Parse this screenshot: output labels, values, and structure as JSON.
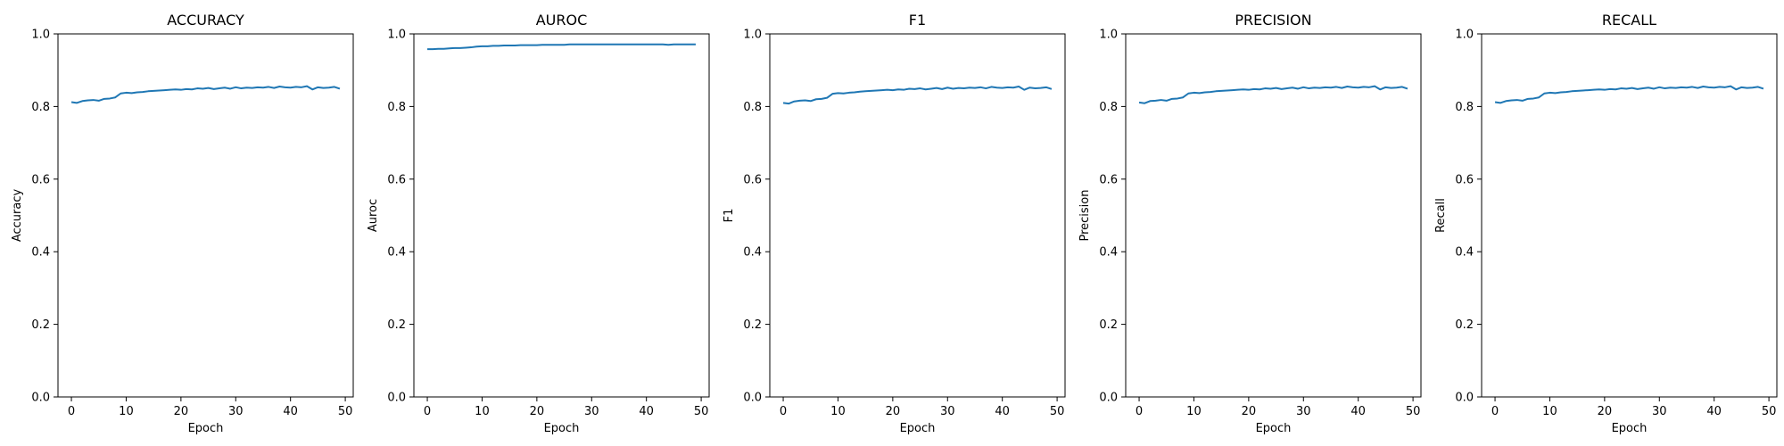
{
  "chart_data": [
    {
      "type": "line",
      "title": "ACCURACY",
      "xlabel": "Epoch",
      "ylabel": "Accuracy",
      "xlim": [
        -2.45,
        51.45
      ],
      "ylim": [
        0.0,
        1.0
      ],
      "xticks": [
        0,
        10,
        20,
        30,
        40,
        50
      ],
      "yticks": [
        0.0,
        0.2,
        0.4,
        0.6,
        0.8,
        1.0
      ],
      "grid": false,
      "color": "#1f77b4",
      "series": [
        {
          "x": [
            0,
            1,
            2,
            3,
            4,
            5,
            6,
            7,
            8,
            9,
            10,
            11,
            12,
            13,
            14,
            15,
            16,
            17,
            18,
            19,
            20,
            21,
            22,
            23,
            24,
            25,
            26,
            27,
            28,
            29,
            30,
            31,
            32,
            33,
            34,
            35,
            36,
            37,
            38,
            39,
            40,
            41,
            42,
            43,
            44,
            45,
            46,
            47,
            48,
            49
          ],
          "values": [
            0.812,
            0.81,
            0.815,
            0.817,
            0.818,
            0.816,
            0.821,
            0.822,
            0.825,
            0.836,
            0.838,
            0.837,
            0.839,
            0.84,
            0.842,
            0.843,
            0.844,
            0.845,
            0.846,
            0.847,
            0.846,
            0.848,
            0.847,
            0.85,
            0.849,
            0.851,
            0.848,
            0.85,
            0.852,
            0.849,
            0.853,
            0.85,
            0.852,
            0.851,
            0.853,
            0.852,
            0.854,
            0.851,
            0.855,
            0.853,
            0.852,
            0.854,
            0.853,
            0.856,
            0.847,
            0.853,
            0.851,
            0.852,
            0.854,
            0.849
          ]
        }
      ]
    },
    {
      "type": "line",
      "title": "AUROC",
      "xlabel": "Epoch",
      "ylabel": "Auroc",
      "xlim": [
        -2.45,
        51.45
      ],
      "ylim": [
        0.0,
        1.0
      ],
      "xticks": [
        0,
        10,
        20,
        30,
        40,
        50
      ],
      "yticks": [
        0.0,
        0.2,
        0.4,
        0.6,
        0.8,
        1.0
      ],
      "grid": false,
      "color": "#1f77b4",
      "series": [
        {
          "x": [
            0,
            1,
            2,
            3,
            4,
            5,
            6,
            7,
            8,
            9,
            10,
            11,
            12,
            13,
            14,
            15,
            16,
            17,
            18,
            19,
            20,
            21,
            22,
            23,
            24,
            25,
            26,
            27,
            28,
            29,
            30,
            31,
            32,
            33,
            34,
            35,
            36,
            37,
            38,
            39,
            40,
            41,
            42,
            43,
            44,
            45,
            46,
            47,
            48,
            49
          ],
          "values": [
            0.958,
            0.958,
            0.959,
            0.959,
            0.96,
            0.961,
            0.961,
            0.962,
            0.963,
            0.965,
            0.966,
            0.966,
            0.967,
            0.967,
            0.968,
            0.968,
            0.968,
            0.969,
            0.969,
            0.969,
            0.969,
            0.97,
            0.97,
            0.97,
            0.97,
            0.97,
            0.971,
            0.971,
            0.971,
            0.971,
            0.971,
            0.971,
            0.971,
            0.971,
            0.971,
            0.971,
            0.971,
            0.971,
            0.971,
            0.971,
            0.971,
            0.971,
            0.971,
            0.971,
            0.97,
            0.971,
            0.971,
            0.971,
            0.971,
            0.971
          ]
        }
      ]
    },
    {
      "type": "line",
      "title": "F1",
      "xlabel": "Epoch",
      "ylabel": "F1",
      "xlim": [
        -2.45,
        51.45
      ],
      "ylim": [
        0.0,
        1.0
      ],
      "xticks": [
        0,
        10,
        20,
        30,
        40,
        50
      ],
      "yticks": [
        0.0,
        0.2,
        0.4,
        0.6,
        0.8,
        1.0
      ],
      "grid": false,
      "color": "#1f77b4",
      "series": [
        {
          "x": [
            0,
            1,
            2,
            3,
            4,
            5,
            6,
            7,
            8,
            9,
            10,
            11,
            12,
            13,
            14,
            15,
            16,
            17,
            18,
            19,
            20,
            21,
            22,
            23,
            24,
            25,
            26,
            27,
            28,
            29,
            30,
            31,
            32,
            33,
            34,
            35,
            36,
            37,
            38,
            39,
            40,
            41,
            42,
            43,
            44,
            45,
            46,
            47,
            48,
            49
          ],
          "values": [
            0.81,
            0.808,
            0.814,
            0.816,
            0.817,
            0.815,
            0.82,
            0.821,
            0.824,
            0.835,
            0.837,
            0.836,
            0.838,
            0.839,
            0.841,
            0.842,
            0.843,
            0.844,
            0.845,
            0.846,
            0.845,
            0.847,
            0.846,
            0.849,
            0.848,
            0.85,
            0.847,
            0.849,
            0.851,
            0.848,
            0.852,
            0.849,
            0.851,
            0.85,
            0.852,
            0.851,
            0.853,
            0.85,
            0.854,
            0.852,
            0.851,
            0.853,
            0.852,
            0.855,
            0.846,
            0.852,
            0.85,
            0.851,
            0.853,
            0.848
          ]
        }
      ]
    },
    {
      "type": "line",
      "title": "PRECISION",
      "xlabel": "Epoch",
      "ylabel": "Precision",
      "xlim": [
        -2.45,
        51.45
      ],
      "ylim": [
        0.0,
        1.0
      ],
      "xticks": [
        0,
        10,
        20,
        30,
        40,
        50
      ],
      "yticks": [
        0.0,
        0.2,
        0.4,
        0.6,
        0.8,
        1.0
      ],
      "grid": false,
      "color": "#1f77b4",
      "series": [
        {
          "x": [
            0,
            1,
            2,
            3,
            4,
            5,
            6,
            7,
            8,
            9,
            10,
            11,
            12,
            13,
            14,
            15,
            16,
            17,
            18,
            19,
            20,
            21,
            22,
            23,
            24,
            25,
            26,
            27,
            28,
            29,
            30,
            31,
            32,
            33,
            34,
            35,
            36,
            37,
            38,
            39,
            40,
            41,
            42,
            43,
            44,
            45,
            46,
            47,
            48,
            49
          ],
          "values": [
            0.811,
            0.809,
            0.815,
            0.816,
            0.818,
            0.816,
            0.821,
            0.822,
            0.825,
            0.836,
            0.838,
            0.837,
            0.839,
            0.84,
            0.842,
            0.843,
            0.844,
            0.845,
            0.846,
            0.847,
            0.846,
            0.848,
            0.847,
            0.85,
            0.849,
            0.851,
            0.848,
            0.85,
            0.852,
            0.849,
            0.853,
            0.85,
            0.852,
            0.851,
            0.853,
            0.852,
            0.854,
            0.851,
            0.855,
            0.853,
            0.852,
            0.854,
            0.853,
            0.856,
            0.847,
            0.853,
            0.851,
            0.852,
            0.854,
            0.849
          ]
        }
      ]
    },
    {
      "type": "line",
      "title": "RECALL",
      "xlabel": "Epoch",
      "ylabel": "Recall",
      "xlim": [
        -2.45,
        51.45
      ],
      "ylim": [
        0.0,
        1.0
      ],
      "xticks": [
        0,
        10,
        20,
        30,
        40,
        50
      ],
      "yticks": [
        0.0,
        0.2,
        0.4,
        0.6,
        0.8,
        1.0
      ],
      "grid": false,
      "color": "#1f77b4",
      "series": [
        {
          "x": [
            0,
            1,
            2,
            3,
            4,
            5,
            6,
            7,
            8,
            9,
            10,
            11,
            12,
            13,
            14,
            15,
            16,
            17,
            18,
            19,
            20,
            21,
            22,
            23,
            24,
            25,
            26,
            27,
            28,
            29,
            30,
            31,
            32,
            33,
            34,
            35,
            36,
            37,
            38,
            39,
            40,
            41,
            42,
            43,
            44,
            45,
            46,
            47,
            48,
            49
          ],
          "values": [
            0.812,
            0.81,
            0.815,
            0.817,
            0.818,
            0.816,
            0.821,
            0.822,
            0.825,
            0.836,
            0.838,
            0.837,
            0.839,
            0.84,
            0.842,
            0.843,
            0.844,
            0.845,
            0.846,
            0.847,
            0.846,
            0.848,
            0.847,
            0.85,
            0.849,
            0.851,
            0.848,
            0.85,
            0.852,
            0.849,
            0.853,
            0.85,
            0.852,
            0.851,
            0.853,
            0.852,
            0.854,
            0.851,
            0.855,
            0.853,
            0.852,
            0.854,
            0.853,
            0.856,
            0.847,
            0.853,
            0.851,
            0.852,
            0.854,
            0.849
          ]
        }
      ]
    }
  ]
}
